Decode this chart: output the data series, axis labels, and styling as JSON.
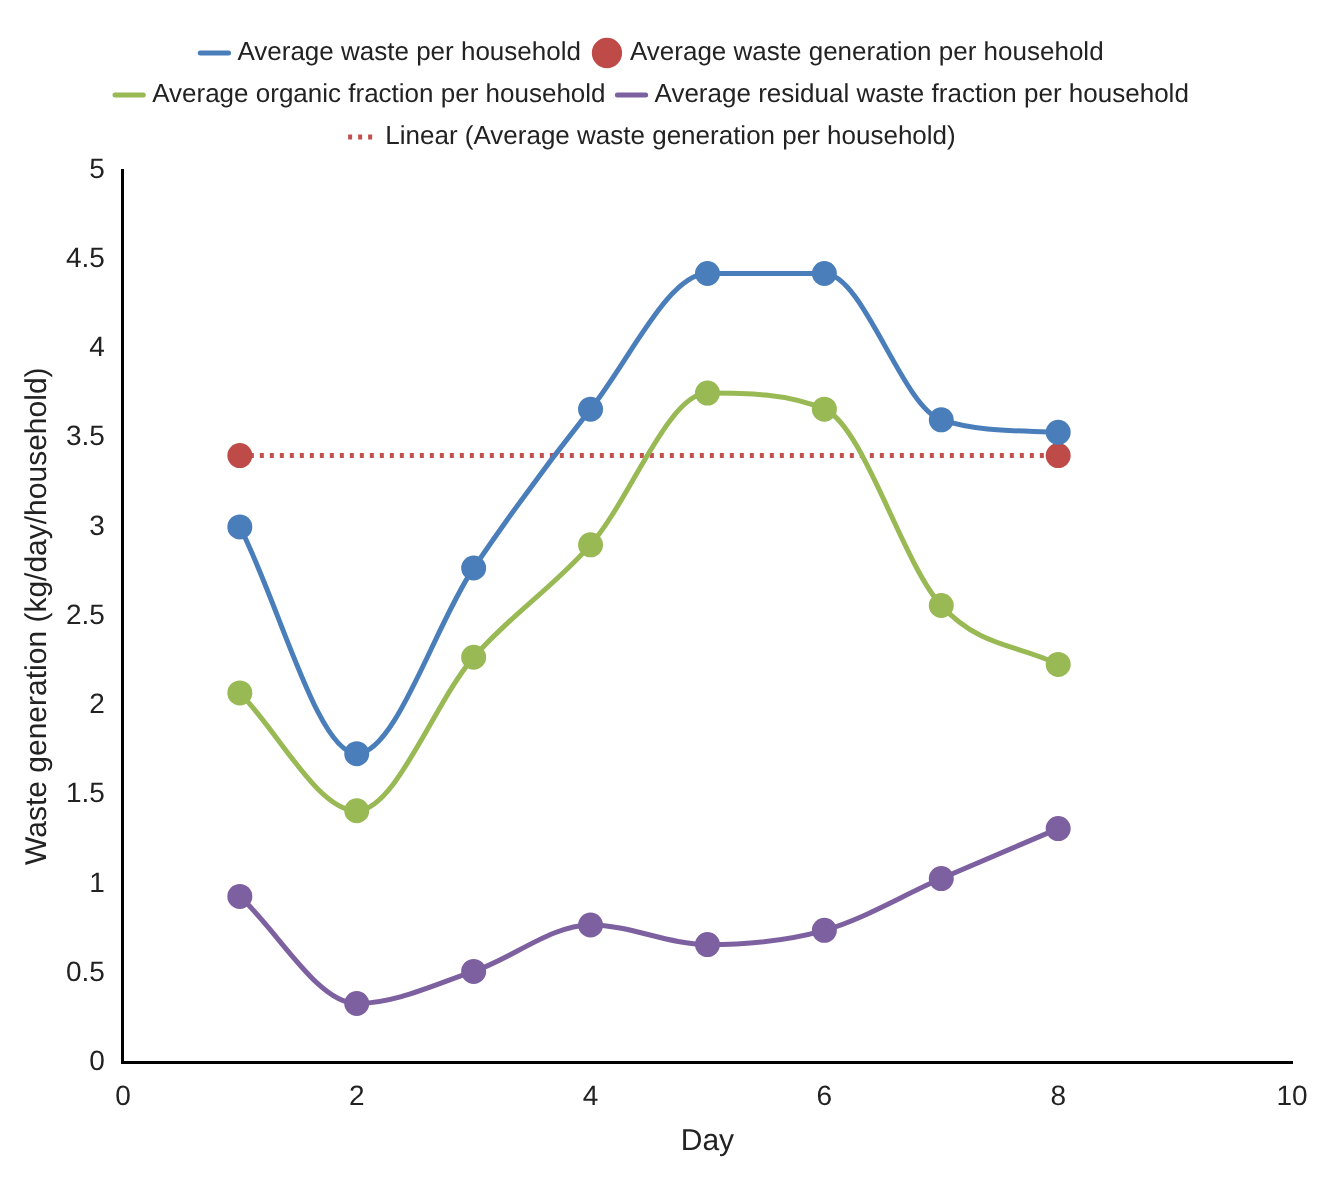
{
  "chart_data": {
    "type": "line",
    "xlabel": "Day",
    "ylabel": "Waste generation (kg/day/household)",
    "x": [
      1,
      2,
      3,
      4,
      5,
      6,
      7,
      8
    ],
    "xlim": [
      0,
      10
    ],
    "xticks": [
      0,
      2,
      4,
      6,
      8,
      10
    ],
    "ylim": [
      0,
      5
    ],
    "yticks": [
      0,
      0.5,
      1,
      1.5,
      2,
      2.5,
      3,
      3.5,
      4,
      4.5,
      5
    ],
    "grid": false,
    "legend": "top",
    "marker": "circle",
    "series": [
      {
        "name": "Average waste per household",
        "color": "#4a7ebb",
        "values": [
          3.0,
          1.73,
          2.77,
          3.66,
          4.42,
          4.42,
          3.6,
          3.53
        ]
      },
      {
        "name": "Average waste generation per household",
        "type": "scatter",
        "color": "#be4b48",
        "values": [
          3.4,
          null,
          null,
          null,
          null,
          null,
          null,
          3.4
        ]
      },
      {
        "name": "Average organic fraction per household",
        "color": "#98b954",
        "values": [
          2.07,
          1.41,
          2.27,
          2.9,
          3.75,
          3.66,
          2.56,
          2.23
        ]
      },
      {
        "name": "Average residual waste fraction per household",
        "color": "#7d60a0",
        "values": [
          0.93,
          0.33,
          0.51,
          0.77,
          0.66,
          0.74,
          1.03,
          1.31
        ]
      },
      {
        "name": "Linear (Average waste generation per household)",
        "color": "#c0504d",
        "x": [
          1,
          8
        ],
        "values": [
          3.4,
          3.4
        ],
        "line_style": "dotted",
        "marker": "none"
      }
    ]
  }
}
